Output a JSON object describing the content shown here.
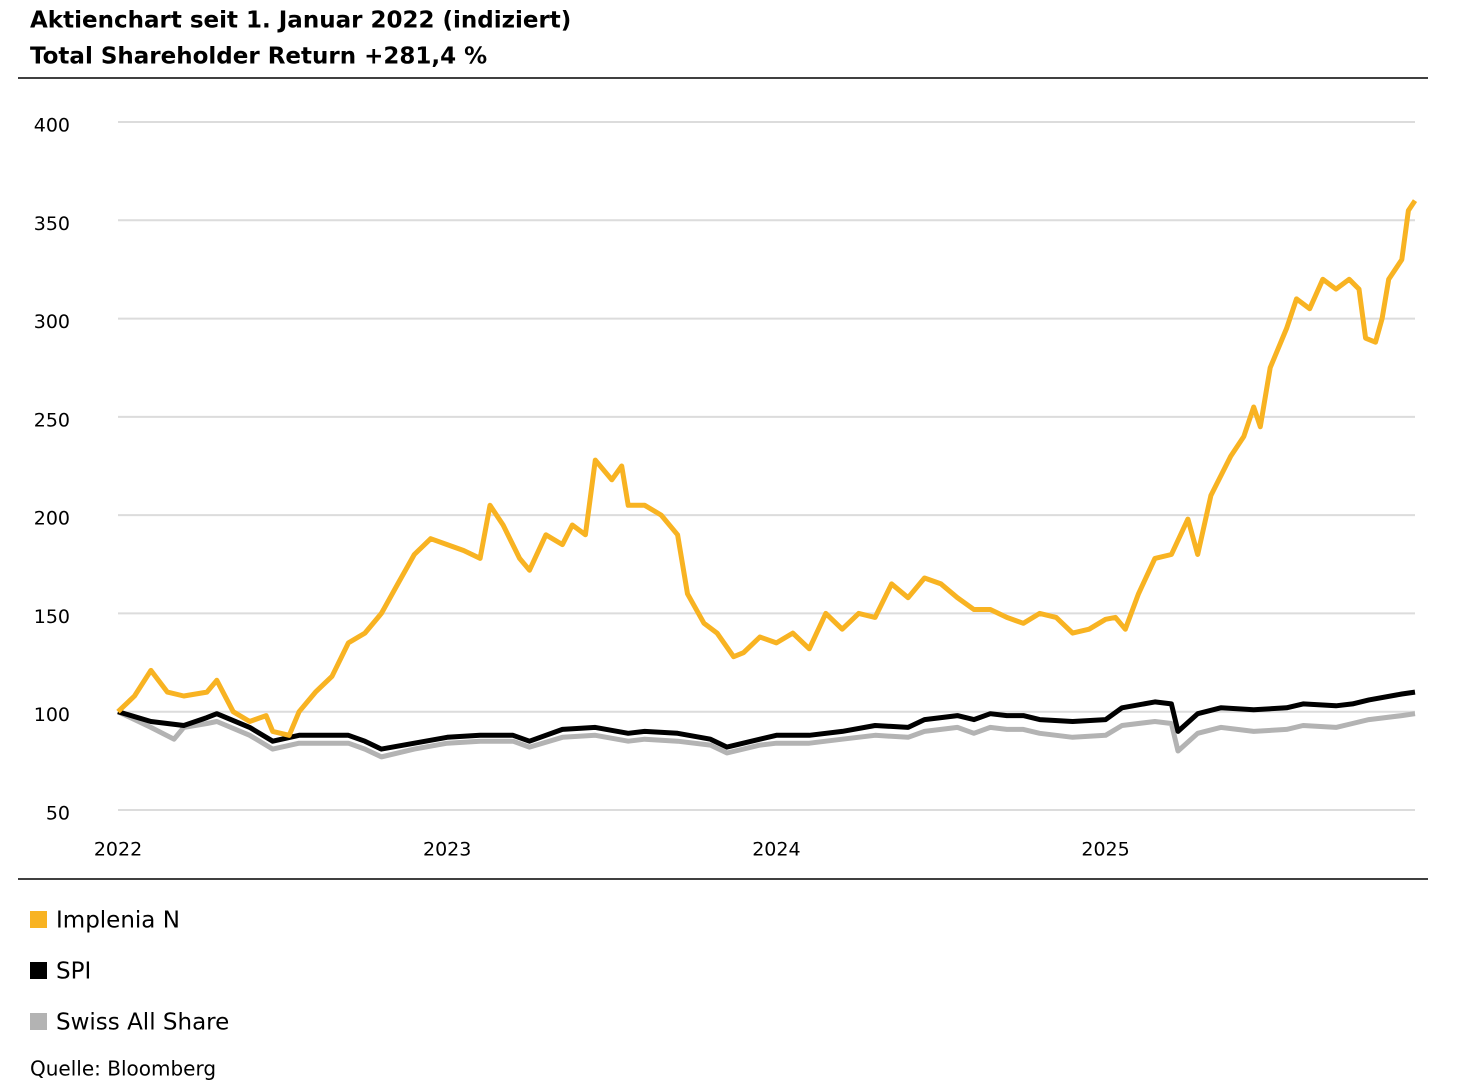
{
  "chart_data": {
    "type": "line",
    "title": "Aktienchart seit 1. Januar 2022 (indiziert)",
    "subtitle": "Total Shareholder Return +281,4 %",
    "source": "Quelle: Bloomberg",
    "xlim": [
      2022,
      2025.94
    ],
    "xticks": [
      2022,
      2023,
      2024,
      2025
    ],
    "ylim": [
      50,
      400
    ],
    "yticks": [
      50,
      100,
      150,
      200,
      250,
      300,
      350,
      400
    ],
    "grid": true,
    "series": [
      {
        "name": "Implenia N",
        "color": "#f8b322",
        "x": [
          2022.0,
          2022.05,
          2022.1,
          2022.15,
          2022.2,
          2022.27,
          2022.3,
          2022.35,
          2022.4,
          2022.45,
          2022.47,
          2022.52,
          2022.55,
          2022.6,
          2022.65,
          2022.7,
          2022.75,
          2022.8,
          2022.85,
          2022.9,
          2022.95,
          2023.0,
          2023.05,
          2023.1,
          2023.13,
          2023.17,
          2023.22,
          2023.25,
          2023.3,
          2023.35,
          2023.38,
          2023.42,
          2023.45,
          2023.5,
          2023.53,
          2023.55,
          2023.6,
          2023.65,
          2023.7,
          2023.73,
          2023.78,
          2023.82,
          2023.87,
          2023.9,
          2023.95,
          2024.0,
          2024.05,
          2024.1,
          2024.15,
          2024.2,
          2024.25,
          2024.3,
          2024.35,
          2024.4,
          2024.45,
          2024.5,
          2024.55,
          2024.6,
          2024.65,
          2024.7,
          2024.75,
          2024.8,
          2024.85,
          2024.9,
          2024.95,
          2025.0,
          2025.03,
          2025.06,
          2025.1,
          2025.15,
          2025.2,
          2025.25,
          2025.28,
          2025.32,
          2025.38,
          2025.42,
          2025.45,
          2025.47,
          2025.5,
          2025.55,
          2025.58,
          2025.62,
          2025.66,
          2025.7,
          2025.74,
          2025.77,
          2025.79,
          2025.82,
          2025.84,
          2025.86,
          2025.9,
          2025.92,
          2025.94
        ],
        "values": [
          100,
          108,
          121,
          110,
          108,
          110,
          116,
          100,
          95,
          98,
          90,
          88,
          100,
          110,
          118,
          135,
          140,
          150,
          165,
          180,
          188,
          185,
          182,
          178,
          205,
          195,
          178,
          172,
          190,
          185,
          195,
          190,
          228,
          218,
          225,
          205,
          205,
          200,
          190,
          160,
          145,
          140,
          128,
          130,
          138,
          135,
          140,
          132,
          150,
          142,
          150,
          148,
          165,
          158,
          168,
          165,
          158,
          152,
          152,
          148,
          145,
          150,
          148,
          140,
          142,
          147,
          148,
          142,
          160,
          178,
          180,
          198,
          180,
          210,
          230,
          240,
          255,
          245,
          275,
          295,
          310,
          305,
          320,
          315,
          320,
          315,
          290,
          288,
          300,
          320,
          330,
          355,
          360
        ]
      },
      {
        "name": "SPI",
        "color": "#000000",
        "x": [
          2022.0,
          2022.1,
          2022.2,
          2022.27,
          2022.3,
          2022.4,
          2022.47,
          2022.55,
          2022.7,
          2022.75,
          2022.8,
          2022.9,
          2023.0,
          2023.1,
          2023.2,
          2023.25,
          2023.35,
          2023.45,
          2023.55,
          2023.6,
          2023.7,
          2023.8,
          2023.85,
          2023.95,
          2024.0,
          2024.1,
          2024.2,
          2024.3,
          2024.4,
          2024.45,
          2024.5,
          2024.55,
          2024.6,
          2024.65,
          2024.7,
          2024.75,
          2024.8,
          2024.9,
          2025.0,
          2025.05,
          2025.15,
          2025.2,
          2025.22,
          2025.28,
          2025.35,
          2025.45,
          2025.55,
          2025.6,
          2025.7,
          2025.75,
          2025.8,
          2025.9,
          2025.94
        ],
        "values": [
          100,
          95,
          93,
          97,
          99,
          92,
          85,
          88,
          88,
          85,
          81,
          84,
          87,
          88,
          88,
          85,
          91,
          92,
          89,
          90,
          89,
          86,
          82,
          86,
          88,
          88,
          90,
          93,
          92,
          96,
          97,
          98,
          96,
          99,
          98,
          98,
          96,
          95,
          96,
          102,
          105,
          104,
          90,
          99,
          102,
          101,
          102,
          104,
          103,
          104,
          106,
          109,
          110
        ]
      },
      {
        "name": "Swiss All Share",
        "color": "#b3b3b3",
        "x": [
          2022.0,
          2022.1,
          2022.17,
          2022.2,
          2022.27,
          2022.3,
          2022.4,
          2022.47,
          2022.55,
          2022.7,
          2022.75,
          2022.8,
          2022.9,
          2023.0,
          2023.1,
          2023.2,
          2023.25,
          2023.35,
          2023.45,
          2023.55,
          2023.6,
          2023.7,
          2023.8,
          2023.85,
          2023.95,
          2024.0,
          2024.1,
          2024.2,
          2024.3,
          2024.4,
          2024.45,
          2024.5,
          2024.55,
          2024.6,
          2024.65,
          2024.7,
          2024.75,
          2024.8,
          2024.9,
          2025.0,
          2025.05,
          2025.15,
          2025.2,
          2025.22,
          2025.28,
          2025.35,
          2025.45,
          2025.55,
          2025.6,
          2025.7,
          2025.75,
          2025.8,
          2025.9,
          2025.94
        ],
        "values": [
          100,
          92,
          86,
          92,
          94,
          95,
          88,
          81,
          84,
          84,
          81,
          77,
          81,
          84,
          85,
          85,
          82,
          87,
          88,
          85,
          86,
          85,
          83,
          79,
          83,
          84,
          84,
          86,
          88,
          87,
          90,
          91,
          92,
          89,
          92,
          91,
          91,
          89,
          87,
          88,
          93,
          95,
          94,
          80,
          89,
          92,
          90,
          91,
          93,
          92,
          94,
          96,
          98,
          99
        ]
      }
    ],
    "legend": "bottom"
  }
}
